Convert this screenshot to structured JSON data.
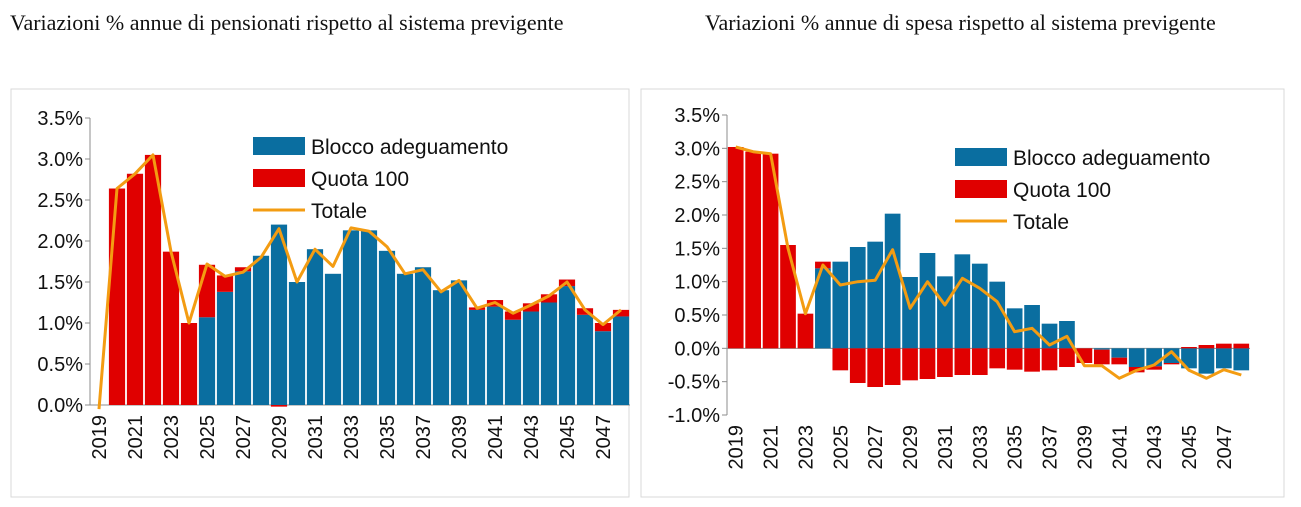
{
  "titles": {
    "left": "Variazioni % annue di pensionati rispetto al sistema previgente",
    "right": "Variazioni % annue di spesa rispetto al sistema previgente"
  },
  "chart_data": [
    {
      "type": "bar",
      "stacked": true,
      "title": "Variazioni % annue di pensionati rispetto al sistema previgente",
      "x": [
        2019,
        2020,
        2021,
        2022,
        2023,
        2024,
        2025,
        2026,
        2027,
        2028,
        2029,
        2030,
        2031,
        2032,
        2033,
        2034,
        2035,
        2036,
        2037,
        2038,
        2039,
        2040,
        2041,
        2042,
        2043,
        2044,
        2045,
        2046,
        2047,
        2048
      ],
      "x_tick_labels": [
        "2019",
        "2021",
        "2023",
        "2025",
        "2027",
        "2029",
        "2031",
        "2033",
        "2035",
        "2037",
        "2039",
        "2041",
        "2043",
        "2045",
        "2047"
      ],
      "y_tick_labels": [
        "0.0%",
        "0.5%",
        "1.0%",
        "1.5%",
        "2.0%",
        "2.5%",
        "3.0%",
        "3.5%"
      ],
      "ylim": [
        0,
        3.5
      ],
      "series": [
        {
          "name": "Blocco adeguamento",
          "kind": "bar",
          "color": "#0a6ea0",
          "values": [
            0,
            0,
            0,
            0,
            0,
            0,
            1.07,
            1.38,
            1.63,
            1.82,
            2.2,
            1.5,
            1.9,
            1.6,
            2.13,
            2.13,
            1.88,
            1.6,
            1.68,
            1.4,
            1.52,
            1.16,
            1.2,
            1.04,
            1.14,
            1.25,
            1.45,
            1.1,
            0.9,
            1.08
          ]
        },
        {
          "name": "Quota 100",
          "kind": "bar",
          "color": "#e00000",
          "values": [
            0,
            2.64,
            2.82,
            3.05,
            1.87,
            1.0,
            0.64,
            0.2,
            0.05,
            0,
            -0.02,
            0,
            0,
            0,
            0,
            0,
            0,
            0,
            0,
            0,
            0,
            0.03,
            0.08,
            0.1,
            0.1,
            0.1,
            0.08,
            0.08,
            0.1,
            0.08
          ]
        },
        {
          "name": "Totale",
          "kind": "line",
          "color": "#f39c12",
          "values": [
            -0.05,
            2.64,
            2.82,
            3.05,
            1.87,
            1.0,
            1.72,
            1.57,
            1.62,
            1.8,
            2.15,
            1.5,
            1.9,
            1.69,
            2.16,
            2.12,
            1.93,
            1.6,
            1.65,
            1.38,
            1.52,
            1.18,
            1.25,
            1.12,
            1.22,
            1.33,
            1.5,
            1.16,
            0.98,
            1.16
          ]
        }
      ],
      "legend": {
        "position": "top-right",
        "entries": [
          "Blocco adeguamento",
          "Quota 100",
          "Totale"
        ]
      }
    },
    {
      "type": "bar",
      "stacked": true,
      "title": "Variazioni % annue di spesa rispetto al sistema previgente",
      "x": [
        2019,
        2020,
        2021,
        2022,
        2023,
        2024,
        2025,
        2026,
        2027,
        2028,
        2029,
        2030,
        2031,
        2032,
        2033,
        2034,
        2035,
        2036,
        2037,
        2038,
        2039,
        2040,
        2041,
        2042,
        2043,
        2044,
        2045,
        2046,
        2047,
        2048
      ],
      "x_tick_labels": [
        "2019",
        "2021",
        "2023",
        "2025",
        "2027",
        "2029",
        "2031",
        "2033",
        "2035",
        "2037",
        "2039",
        "2041",
        "2043",
        "2045",
        "2047"
      ],
      "y_tick_labels": [
        "-1.0%",
        "-0.5%",
        "0.0%",
        "0.5%",
        "1.0%",
        "1.5%",
        "2.0%",
        "2.5%",
        "3.0%",
        "3.5%"
      ],
      "ylim": [
        -1.0,
        3.5
      ],
      "series": [
        {
          "name": "Blocco adeguamento",
          "kind": "bar",
          "color": "#0a6ea0",
          "values": [
            0,
            0,
            0,
            0,
            0,
            1.2,
            1.3,
            1.52,
            1.6,
            2.02,
            1.07,
            1.43,
            1.08,
            1.41,
            1.27,
            1.0,
            0.6,
            0.65,
            0.37,
            0.41,
            0,
            -0.02,
            -0.14,
            -0.28,
            -0.27,
            -0.22,
            -0.3,
            -0.38,
            -0.3,
            -0.33
          ]
        },
        {
          "name": "Quota 100",
          "kind": "bar",
          "color": "#e00000",
          "values": [
            3.02,
            2.95,
            2.92,
            1.55,
            0.52,
            0.1,
            -0.33,
            -0.52,
            -0.58,
            -0.55,
            -0.48,
            -0.46,
            -0.43,
            -0.4,
            -0.4,
            -0.3,
            -0.32,
            -0.35,
            -0.33,
            -0.28,
            -0.22,
            -0.22,
            -0.1,
            -0.08,
            -0.05,
            -0.02,
            0.02,
            0.05,
            0.07,
            0.07
          ]
        },
        {
          "name": "Totale",
          "kind": "line",
          "color": "#f39c12",
          "values": [
            3.02,
            2.95,
            2.92,
            1.5,
            0.52,
            1.25,
            0.95,
            1.0,
            1.02,
            1.48,
            0.6,
            1.0,
            0.65,
            1.05,
            0.9,
            0.7,
            0.25,
            0.3,
            0.05,
            0.18,
            -0.26,
            -0.26,
            -0.45,
            -0.33,
            -0.25,
            -0.05,
            -0.33,
            -0.45,
            -0.32,
            -0.4
          ]
        }
      ],
      "legend": {
        "position": "top-right",
        "entries": [
          "Blocco adeguamento",
          "Quota 100",
          "Totale"
        ]
      }
    }
  ]
}
